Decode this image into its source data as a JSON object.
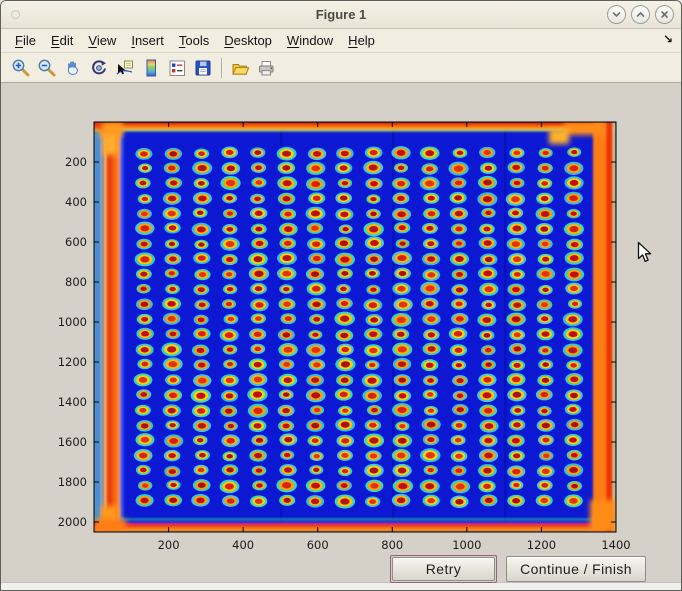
{
  "window": {
    "title": "Figure 1"
  },
  "menubar": {
    "items": [
      {
        "label": "File",
        "mnemonic": "F"
      },
      {
        "label": "Edit",
        "mnemonic": "E"
      },
      {
        "label": "View",
        "mnemonic": "V"
      },
      {
        "label": "Insert",
        "mnemonic": "I"
      },
      {
        "label": "Tools",
        "mnemonic": "T"
      },
      {
        "label": "Desktop",
        "mnemonic": "D"
      },
      {
        "label": "Window",
        "mnemonic": "W"
      },
      {
        "label": "Help",
        "mnemonic": "H"
      }
    ],
    "dock_arrow_glyph": "↘"
  },
  "toolbar": {
    "tools": [
      "zoom-in",
      "zoom-out",
      "pan",
      "rotate-3d",
      "data-cursor",
      "insert-colorbar",
      "insert-legend",
      "save-figure",
      "open-file",
      "print-figure"
    ]
  },
  "buttons": {
    "retry_label": "Retry",
    "continue_label": "Continue / Finish"
  },
  "chart_data": {
    "type": "heatmap",
    "title": "",
    "xlabel": "",
    "ylabel": "",
    "xlim": [
      0,
      1400
    ],
    "ylim": [
      0,
      2050
    ],
    "xticks": [
      200,
      400,
      600,
      800,
      1000,
      1200,
      1400
    ],
    "yticks": [
      200,
      400,
      600,
      800,
      1000,
      1200,
      1400,
      1600,
      1800,
      2000
    ],
    "colormap": "jet",
    "description": "Scanned microarray plate shown with jet colormap: deep blue background, 16 x 24 grid of spots (dark red cores, yellow-orange rings, cyan halos) and saturated red/orange scanner artifacts along all four plate edges",
    "grid": {
      "cols": 16,
      "rows": 24,
      "x_first": 134,
      "x_last": 1287,
      "y_first": 155,
      "y_last": 1895
    },
    "palette": {
      "background": "#0c18d2",
      "spot_core": [
        "#c00d0d",
        "#d32310",
        "#b41414",
        "#dd3512",
        "#a81010"
      ],
      "spot_ring": [
        "#ffb200",
        "#ffc400",
        "#ff9e00",
        "#fdd000"
      ],
      "spot_halo": [
        "#2ed6d6",
        "#38e0c4",
        "#45cfe8",
        "#2fc4ee"
      ],
      "edge_red": "#ee3408",
      "edge_orange": "#ff7d12",
      "edge_yellow": "#ffd23a",
      "edge_teal": "#23c8a0"
    }
  }
}
